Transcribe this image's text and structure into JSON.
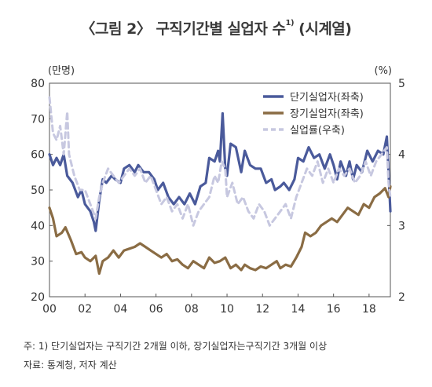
{
  "title": {
    "main": "〈그림 2〉 구직기간별 실업자 수",
    "superscript": "1)",
    "suffix": "(시계열)"
  },
  "notes": {
    "line1": "주: 1) 단기실업자는 구직기간 2개월 이하, 장기실업자는구직기간 3개월 이상",
    "line2": "자료: 통계청, 저자 계산"
  },
  "chart_data": {
    "type": "line",
    "left_unit": "(만명)",
    "right_unit": "(%)",
    "ylim_left": [
      20,
      80
    ],
    "ylim_right": [
      2,
      5
    ],
    "x_range": [
      2000,
      2019.2
    ],
    "left_ticks": [
      "80",
      "70",
      "60",
      "50",
      "40",
      "30",
      "20"
    ],
    "right_ticks": [
      "5",
      "4",
      "3",
      "2"
    ],
    "x_ticks": [
      {
        "label": "00",
        "year": 2000
      },
      {
        "label": "02",
        "year": 2002
      },
      {
        "label": "04",
        "year": 2004
      },
      {
        "label": "06",
        "year": 2006
      },
      {
        "label": "08",
        "year": 2008
      },
      {
        "label": "10",
        "year": 2010
      },
      {
        "label": "12",
        "year": 2012
      },
      {
        "label": "14",
        "year": 2014
      },
      {
        "label": "16",
        "year": 2016
      },
      {
        "label": "18",
        "year": 2018
      }
    ],
    "legend_position": "top-right",
    "grid": false,
    "series": [
      {
        "name": "단기실업자(좌축)",
        "axis": "left",
        "color": "#4a5a9b",
        "style": "solid",
        "points": [
          [
            2000.0,
            60
          ],
          [
            2000.2,
            57
          ],
          [
            2000.4,
            59
          ],
          [
            2000.6,
            57
          ],
          [
            2000.8,
            60
          ],
          [
            2001.0,
            54
          ],
          [
            2001.3,
            52
          ],
          [
            2001.6,
            48
          ],
          [
            2001.8,
            50
          ],
          [
            2002.0,
            46
          ],
          [
            2002.3,
            44
          ],
          [
            2002.5,
            41
          ],
          [
            2002.6,
            38.5
          ],
          [
            2002.8,
            47
          ],
          [
            2003.0,
            53
          ],
          [
            2003.2,
            52
          ],
          [
            2003.5,
            54
          ],
          [
            2003.7,
            53
          ],
          [
            2004.0,
            52
          ],
          [
            2004.2,
            56
          ],
          [
            2004.5,
            57
          ],
          [
            2004.8,
            55
          ],
          [
            2005.0,
            57
          ],
          [
            2005.3,
            55
          ],
          [
            2005.6,
            55
          ],
          [
            2005.9,
            53
          ],
          [
            2006.1,
            50
          ],
          [
            2006.4,
            52
          ],
          [
            2006.7,
            48
          ],
          [
            2007.0,
            46
          ],
          [
            2007.3,
            48
          ],
          [
            2007.6,
            46
          ],
          [
            2007.9,
            49
          ],
          [
            2008.2,
            46
          ],
          [
            2008.5,
            51
          ],
          [
            2008.8,
            52
          ],
          [
            2009.0,
            59
          ],
          [
            2009.3,
            58
          ],
          [
            2009.5,
            61
          ],
          [
            2009.6,
            58
          ],
          [
            2009.75,
            71.5
          ],
          [
            2009.9,
            56
          ],
          [
            2010.0,
            54
          ],
          [
            2010.2,
            63
          ],
          [
            2010.5,
            62
          ],
          [
            2010.8,
            55
          ],
          [
            2011.0,
            61
          ],
          [
            2011.3,
            57
          ],
          [
            2011.6,
            56
          ],
          [
            2011.9,
            56
          ],
          [
            2012.2,
            52
          ],
          [
            2012.5,
            53
          ],
          [
            2012.7,
            50
          ],
          [
            2013.0,
            51
          ],
          [
            2013.2,
            52
          ],
          [
            2013.5,
            50
          ],
          [
            2013.8,
            53
          ],
          [
            2014.0,
            59
          ],
          [
            2014.3,
            58
          ],
          [
            2014.6,
            62
          ],
          [
            2014.9,
            59
          ],
          [
            2015.2,
            60
          ],
          [
            2015.5,
            56
          ],
          [
            2015.8,
            60
          ],
          [
            2016.0,
            57
          ],
          [
            2016.2,
            53
          ],
          [
            2016.4,
            58
          ],
          [
            2016.7,
            54
          ],
          [
            2016.9,
            58
          ],
          [
            2017.1,
            53
          ],
          [
            2017.3,
            57
          ],
          [
            2017.6,
            55
          ],
          [
            2017.9,
            61
          ],
          [
            2018.2,
            58
          ],
          [
            2018.5,
            61
          ],
          [
            2018.8,
            60
          ],
          [
            2019.0,
            65
          ],
          [
            2019.1,
            55
          ],
          [
            2019.2,
            44
          ]
        ]
      },
      {
        "name": "장기실업자(좌축)",
        "axis": "left",
        "color": "#8a6c44",
        "style": "solid",
        "points": [
          [
            2000.0,
            45
          ],
          [
            2000.2,
            42
          ],
          [
            2000.4,
            37
          ],
          [
            2000.7,
            38
          ],
          [
            2000.9,
            39.5
          ],
          [
            2001.2,
            36
          ],
          [
            2001.5,
            32
          ],
          [
            2001.8,
            32.5
          ],
          [
            2002.0,
            31
          ],
          [
            2002.3,
            30
          ],
          [
            2002.6,
            31.5
          ],
          [
            2002.8,
            26.5
          ],
          [
            2003.0,
            30
          ],
          [
            2003.3,
            31
          ],
          [
            2003.6,
            33
          ],
          [
            2003.9,
            31
          ],
          [
            2004.2,
            33
          ],
          [
            2004.5,
            33.5
          ],
          [
            2004.8,
            34
          ],
          [
            2005.1,
            35
          ],
          [
            2005.4,
            34
          ],
          [
            2005.7,
            33
          ],
          [
            2006.0,
            32
          ],
          [
            2006.3,
            31
          ],
          [
            2006.6,
            32
          ],
          [
            2006.9,
            30
          ],
          [
            2007.2,
            30.5
          ],
          [
            2007.5,
            29
          ],
          [
            2007.8,
            28
          ],
          [
            2008.1,
            30
          ],
          [
            2008.4,
            29
          ],
          [
            2008.7,
            28
          ],
          [
            2009.0,
            31
          ],
          [
            2009.3,
            29.5
          ],
          [
            2009.6,
            30
          ],
          [
            2009.9,
            31
          ],
          [
            2010.2,
            28
          ],
          [
            2010.5,
            29
          ],
          [
            2010.8,
            27.5
          ],
          [
            2011.0,
            29
          ],
          [
            2011.3,
            28
          ],
          [
            2011.6,
            27.5
          ],
          [
            2011.9,
            28.5
          ],
          [
            2012.2,
            28
          ],
          [
            2012.5,
            29
          ],
          [
            2012.8,
            30
          ],
          [
            2013.0,
            28
          ],
          [
            2013.3,
            29
          ],
          [
            2013.6,
            28.5
          ],
          [
            2013.9,
            31
          ],
          [
            2014.2,
            34
          ],
          [
            2014.4,
            38
          ],
          [
            2014.7,
            37
          ],
          [
            2015.0,
            38
          ],
          [
            2015.3,
            40
          ],
          [
            2015.6,
            41
          ],
          [
            2015.9,
            42
          ],
          [
            2016.2,
            41
          ],
          [
            2016.5,
            43
          ],
          [
            2016.8,
            45
          ],
          [
            2017.1,
            44
          ],
          [
            2017.4,
            43
          ],
          [
            2017.7,
            46
          ],
          [
            2018.0,
            45
          ],
          [
            2018.3,
            48
          ],
          [
            2018.6,
            49
          ],
          [
            2018.9,
            50.5
          ],
          [
            2019.1,
            48
          ],
          [
            2019.2,
            51
          ]
        ]
      },
      {
        "name": "실업률(우축)",
        "axis": "right",
        "color": "#c7c8e0",
        "style": "dashed",
        "points": [
          [
            2000.0,
            4.8
          ],
          [
            2000.2,
            4.3
          ],
          [
            2000.4,
            4.2
          ],
          [
            2000.6,
            4.4
          ],
          [
            2000.8,
            4.0
          ],
          [
            2001.0,
            4.6
          ],
          [
            2001.1,
            4.0
          ],
          [
            2001.4,
            3.7
          ],
          [
            2001.7,
            3.5
          ],
          [
            2002.0,
            3.5
          ],
          [
            2002.3,
            3.3
          ],
          [
            2002.6,
            3.1
          ],
          [
            2002.8,
            3.4
          ],
          [
            2003.0,
            3.6
          ],
          [
            2003.3,
            3.8
          ],
          [
            2003.6,
            3.7
          ],
          [
            2003.9,
            3.6
          ],
          [
            2004.2,
            3.7
          ],
          [
            2004.5,
            3.8
          ],
          [
            2004.8,
            3.7
          ],
          [
            2005.1,
            3.8
          ],
          [
            2005.4,
            3.6
          ],
          [
            2005.7,
            3.7
          ],
          [
            2006.0,
            3.5
          ],
          [
            2006.3,
            3.3
          ],
          [
            2006.6,
            3.4
          ],
          [
            2006.9,
            3.2
          ],
          [
            2007.2,
            3.3
          ],
          [
            2007.5,
            3.1
          ],
          [
            2007.8,
            3.3
          ],
          [
            2008.1,
            3.0
          ],
          [
            2008.4,
            3.2
          ],
          [
            2008.7,
            3.3
          ],
          [
            2009.0,
            3.4
          ],
          [
            2009.3,
            3.7
          ],
          [
            2009.5,
            3.6
          ],
          [
            2009.7,
            3.9
          ],
          [
            2009.9,
            3.8
          ],
          [
            2010.0,
            3.4
          ],
          [
            2010.3,
            3.6
          ],
          [
            2010.6,
            3.3
          ],
          [
            2010.9,
            3.4
          ],
          [
            2011.2,
            3.2
          ],
          [
            2011.5,
            3.1
          ],
          [
            2011.8,
            3.3
          ],
          [
            2012.1,
            3.2
          ],
          [
            2012.4,
            3.0
          ],
          [
            2012.7,
            3.1
          ],
          [
            2013.0,
            3.2
          ],
          [
            2013.3,
            3.3
          ],
          [
            2013.6,
            3.1
          ],
          [
            2013.9,
            3.4
          ],
          [
            2014.2,
            3.6
          ],
          [
            2014.5,
            3.8
          ],
          [
            2014.8,
            3.7
          ],
          [
            2015.1,
            3.9
          ],
          [
            2015.4,
            3.6
          ],
          [
            2015.7,
            3.8
          ],
          [
            2016.0,
            3.6
          ],
          [
            2016.3,
            3.8
          ],
          [
            2016.6,
            3.7
          ],
          [
            2016.9,
            3.8
          ],
          [
            2017.2,
            3.6
          ],
          [
            2017.5,
            3.7
          ],
          [
            2017.8,
            3.9
          ],
          [
            2018.1,
            3.7
          ],
          [
            2018.4,
            3.9
          ],
          [
            2018.7,
            4.0
          ],
          [
            2019.0,
            4.1
          ],
          [
            2019.1,
            3.6
          ],
          [
            2019.2,
            3.4
          ]
        ]
      }
    ]
  }
}
